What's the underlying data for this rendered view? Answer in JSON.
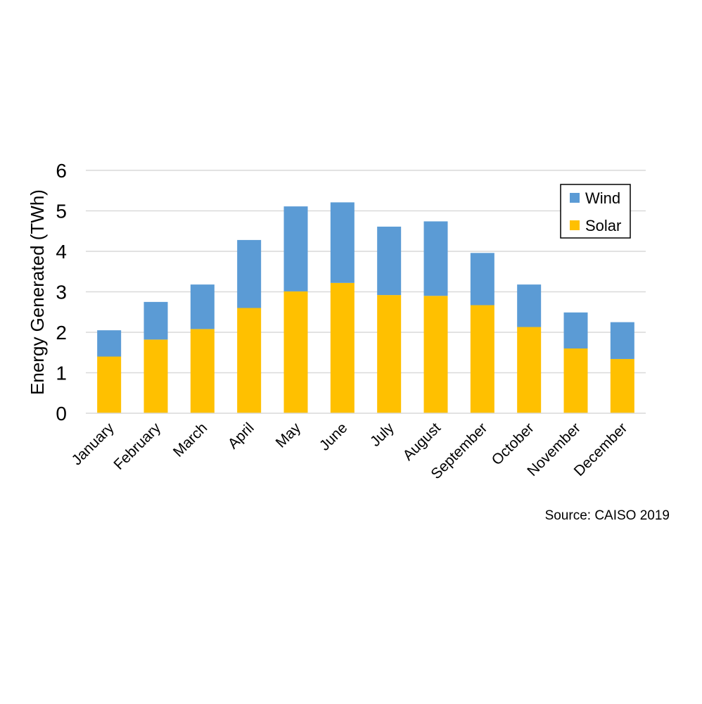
{
  "chart_data": {
    "type": "bar",
    "stacked": true,
    "title": "",
    "xlabel": "",
    "ylabel": "Energy Generated (TWh)",
    "ylim": [
      0,
      6
    ],
    "yticks": [
      "0",
      "1",
      "2",
      "3",
      "4",
      "5",
      "6"
    ],
    "grid": true,
    "legend_position": "top-right",
    "categories": [
      "January",
      "February",
      "March",
      "April",
      "May",
      "June",
      "July",
      "August",
      "September",
      "October",
      "November",
      "December"
    ],
    "series": [
      {
        "name": "Solar",
        "color": "#FFC000",
        "values": [
          1.4,
          1.82,
          2.08,
          2.6,
          3.01,
          3.22,
          2.92,
          2.9,
          2.67,
          2.13,
          1.6,
          1.34
        ]
      },
      {
        "name": "Wind",
        "color": "#5B9BD5",
        "values": [
          0.65,
          0.93,
          1.1,
          1.68,
          2.1,
          1.99,
          1.69,
          1.84,
          1.29,
          1.05,
          0.89,
          0.91
        ]
      }
    ],
    "legend_order": [
      "Wind",
      "Solar"
    ],
    "source": "Source: CAISO 2019"
  }
}
